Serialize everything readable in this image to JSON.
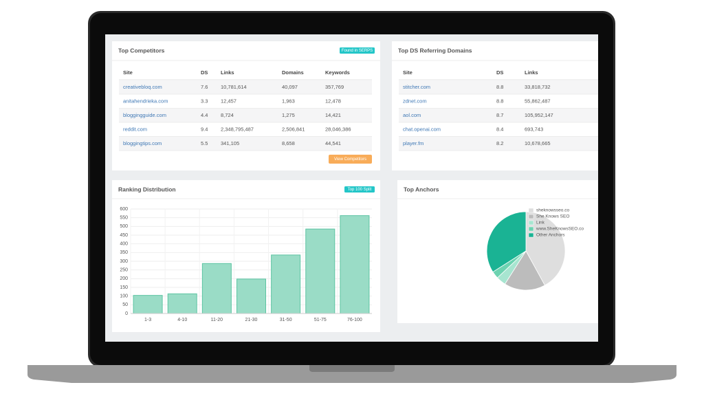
{
  "top_competitors": {
    "title": "Top Competitors",
    "badge": "Found in SERPS",
    "columns": [
      "Site",
      "DS",
      "Links",
      "Domains",
      "Keywords"
    ],
    "rows": [
      [
        "creativebloq.com",
        "7.6",
        "10,781,614",
        "40,097",
        "357,769"
      ],
      [
        "anitahendrieka.com",
        "3.3",
        "12,457",
        "1,963",
        "12,478"
      ],
      [
        "bloggingguide.com",
        "4.4",
        "8,724",
        "1,275",
        "14,421"
      ],
      [
        "reddit.com",
        "9.4",
        "2,348,795,487",
        "2,506,841",
        "28,046,386"
      ],
      [
        "bloggingtips.com",
        "5.5",
        "341,105",
        "8,658",
        "44,541"
      ]
    ],
    "button": "View Competitors"
  },
  "top_ds_referring_domains": {
    "title": "Top DS Referring Domains",
    "columns": [
      "Site",
      "DS",
      "Links"
    ],
    "rows": [
      [
        "stitcher.com",
        "8.8",
        "33,818,732"
      ],
      [
        "zdnet.com",
        "8.8",
        "55,862,487"
      ],
      [
        "aol.com",
        "8.7",
        "105,952,147"
      ],
      [
        "chat.openai.com",
        "8.4",
        "693,743"
      ],
      [
        "player.fm",
        "8.2",
        "10,678,665"
      ]
    ]
  },
  "chart_data": [
    {
      "type": "bar",
      "title": "Ranking Distribution",
      "badge": "Top 100 Split",
      "categories": [
        "1-3",
        "4-10",
        "11-20",
        "21-30",
        "31-50",
        "51-75",
        "76-100"
      ],
      "values": [
        104,
        113,
        287,
        198,
        336,
        485,
        562
      ],
      "color": "#9adcc6",
      "ylim": [
        0,
        600
      ],
      "yticks": [
        0,
        50,
        100,
        150,
        200,
        250,
        300,
        350,
        400,
        450,
        500,
        550,
        600
      ],
      "grid": true
    },
    {
      "type": "pie",
      "title": "Top Anchors",
      "categories": [
        "sheknowsseo.co",
        "She Knows SEO",
        "Link",
        "www.SheKnowsSEO.co",
        "Other Anchors"
      ],
      "values": [
        42,
        17,
        4,
        3,
        34
      ],
      "colors": [
        "#dedede",
        "#bcbcbc",
        "#a7e5d0",
        "#6dd3b1",
        "#1ab394"
      ]
    }
  ]
}
